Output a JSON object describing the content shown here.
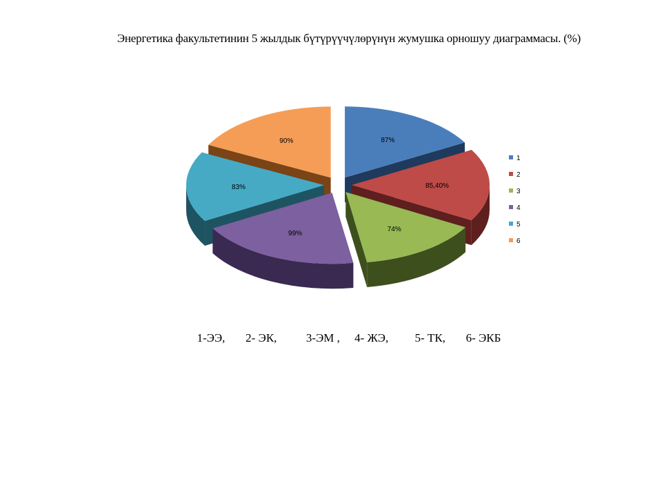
{
  "page": {
    "title": "Энергетика факультетинин  5 жылдык бүтүрүүчүлөрүнүн жумушка орношуу диаграммасы. (%)",
    "footer": "1-ЭЭ,       2- ЭК,          3-ЭМ ,     4- ЖЭ,         5- ТК,       6- ЭКБ"
  },
  "chart_data": {
    "type": "pie",
    "style": "3d-exploded",
    "categories": [
      "1",
      "2",
      "3",
      "4",
      "5",
      "6"
    ],
    "values": [
      87,
      85.4,
      74,
      99,
      83,
      90
    ],
    "data_labels": [
      "87%",
      "85,40%",
      "74%",
      "99%",
      "83%",
      "90%"
    ],
    "legend": [
      "1",
      "2",
      "3",
      "4",
      "5",
      "6"
    ],
    "legend_position": "right",
    "colors": {
      "top": [
        "#4A7EBB",
        "#BE4B48",
        "#98B954",
        "#7D60A0",
        "#46AAC5",
        "#F59D56"
      ],
      "side": [
        "#1F3A5C",
        "#5E1F1E",
        "#3E4F1E",
        "#3A2A52",
        "#1E5462",
        "#7A4416"
      ]
    }
  }
}
